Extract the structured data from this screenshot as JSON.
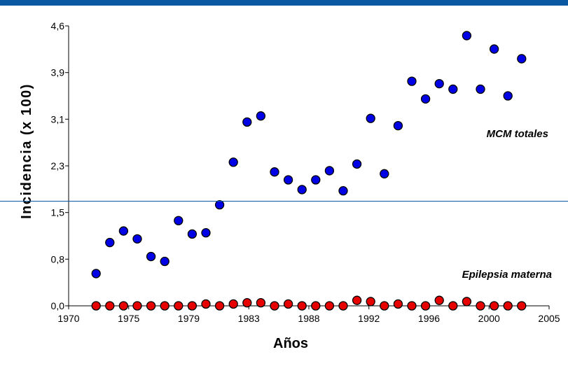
{
  "chart_data": {
    "type": "scatter",
    "title": "",
    "xlabel": "Años",
    "ylabel": "Incidencia (x 100)",
    "xlim": [
      1970,
      2005
    ],
    "ylim": [
      0.0,
      4.6
    ],
    "xticks": [
      "1970",
      "1975",
      "1979",
      "1983",
      "1988",
      "1992",
      "1996",
      "2000",
      "2005"
    ],
    "xtick_values": [
      1970,
      1974.375,
      1978.75,
      1983.125,
      1987.5,
      1991.875,
      1996.25,
      2000.625,
      2005
    ],
    "yticks": [
      "0,0",
      "0,8",
      "1,5",
      "2,3",
      "3,1",
      "3,9",
      "4,6"
    ],
    "ytick_values": [
      0.0,
      0.767,
      1.533,
      2.3,
      3.067,
      3.833,
      4.6
    ],
    "grid": false,
    "series": [
      {
        "name": "MCM totales",
        "color": "#0000e6",
        "x": [
          1972,
          1973,
          1974,
          1975,
          1976,
          1977,
          1978,
          1979,
          1980,
          1981,
          1982,
          1983,
          1984,
          1985,
          1986,
          1987,
          1988,
          1989,
          1990,
          1991,
          1992,
          1993,
          1994,
          1995,
          1996,
          1997,
          1998,
          1999,
          2000,
          2001,
          2002,
          2003
        ],
        "y": [
          0.53,
          1.04,
          1.23,
          1.1,
          0.81,
          0.73,
          1.4,
          1.18,
          1.2,
          1.66,
          2.36,
          3.02,
          3.12,
          2.2,
          2.07,
          1.91,
          2.07,
          2.22,
          1.89,
          2.33,
          3.08,
          2.17,
          2.96,
          3.69,
          3.4,
          3.65,
          3.56,
          4.44,
          3.56,
          4.22,
          3.45,
          4.06
        ]
      },
      {
        "name": "Epilepsia materna",
        "color": "#e60000",
        "x": [
          1972,
          1973,
          1974,
          1975,
          1976,
          1977,
          1978,
          1979,
          1980,
          1981,
          1982,
          1983,
          1984,
          1985,
          1986,
          1987,
          1988,
          1989,
          1990,
          1991,
          1992,
          1993,
          1994,
          1995,
          1996,
          1997,
          1998,
          1999,
          2000,
          2001,
          2002,
          2003
        ],
        "y": [
          0.0,
          0.0,
          0.0,
          0.0,
          0.0,
          0.0,
          0.0,
          0.0,
          0.03,
          0.0,
          0.03,
          0.05,
          0.05,
          0.0,
          0.03,
          0.0,
          0.0,
          0.0,
          0.0,
          0.09,
          0.07,
          0.0,
          0.03,
          0.0,
          0.0,
          0.09,
          0.0,
          0.07,
          0.0,
          0.0,
          0.0,
          0.0
        ]
      }
    ]
  }
}
